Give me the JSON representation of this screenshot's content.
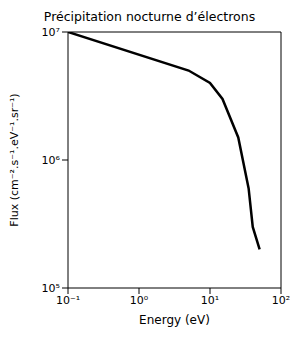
{
  "chart_data": {
    "type": "line",
    "title": "Précipitation nocturne d’électrons",
    "x_label": "Energy (eV)",
    "y_label": "Flux (cm⁻².s⁻¹.eV⁻¹.sr⁻¹)",
    "x": [
      0.1,
      5,
      10,
      15,
      25,
      35,
      40,
      50
    ],
    "values": [
      10000000,
      5000000,
      4000000,
      3000000,
      1500000,
      600000,
      300000,
      200000
    ],
    "color": "#000000",
    "log": true,
    "grid": false,
    "xlim": [
      0.1,
      100
    ],
    "xticks": [
      {
        "value": 0.1,
        "label": "10⁻¹"
      },
      {
        "value": 1,
        "label": "10⁰"
      },
      {
        "value": 10,
        "label": "10¹"
      },
      {
        "value": 100,
        "label": "10²"
      }
    ],
    "ylim": [
      100000,
      10000000
    ],
    "yticks": [
      {
        "value": 100000,
        "label": "10⁵"
      },
      {
        "value": 1000000,
        "label": "10⁶"
      },
      {
        "value": 10000000,
        "label": "10⁷"
      }
    ]
  }
}
